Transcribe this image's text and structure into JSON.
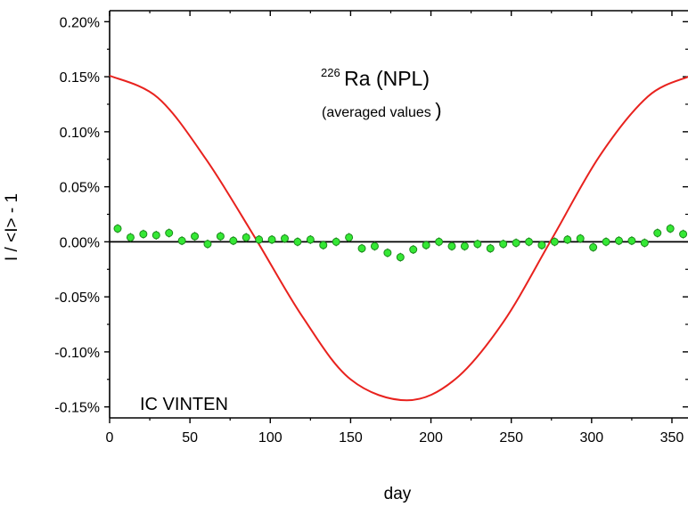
{
  "chart_data": {
    "type": "scatter",
    "xlabel": "day",
    "ylabel": "I / <I> - 1",
    "xlim": [
      0,
      360
    ],
    "ylim": [
      -0.0016,
      0.0021
    ],
    "x_ticks": [
      0,
      50,
      100,
      150,
      200,
      250,
      300,
      350
    ],
    "x_tick_labels": [
      "0",
      "50",
      "100",
      "150",
      "200",
      "250",
      "300",
      "350"
    ],
    "y_ticks": [
      -0.0015,
      -0.001,
      -0.0005,
      0,
      0.0005,
      0.001,
      0.0015,
      0.002
    ],
    "y_tick_labels": [
      "-0.15%",
      "-0.10%",
      "-0.05%",
      "0.00%",
      "0.05%",
      "0.10%",
      "0.15%",
      "0.20%"
    ],
    "grid": false,
    "annotations": {
      "title_sup": "226",
      "title_main": "Ra (NPL)",
      "subtitle": "(averaged values",
      "subtitle_close": ")",
      "detector": "IC VINTEN"
    },
    "colors": {
      "curve": "#e8221e",
      "points_fill": "#35e835",
      "points_stroke": "#1a8a1a",
      "detector_label": "#7a7a10",
      "zero_line": "#000000"
    },
    "curve": {
      "name": "",
      "x": [
        0,
        30,
        60,
        90,
        120,
        150,
        185,
        215,
        245,
        275,
        305,
        335,
        360
      ],
      "y": [
        0.00151,
        0.00131,
        0.00075,
        5e-05,
        -0.00068,
        -0.00125,
        -0.00144,
        -0.00125,
        -0.00073,
        2e-05,
        0.00078,
        0.00132,
        0.0015
      ]
    },
    "series": [
      {
        "name": "",
        "x": [
          5,
          13,
          21,
          29,
          37,
          45,
          53,
          61,
          69,
          77,
          85,
          93,
          101,
          109,
          117,
          125,
          133,
          141,
          149,
          157,
          165,
          173,
          181,
          189,
          197,
          205,
          213,
          221,
          229,
          237,
          245,
          253,
          261,
          269,
          277,
          285,
          293,
          301,
          309,
          317,
          325,
          333,
          341,
          349,
          357
        ],
        "y": [
          0.00012,
          4e-05,
          7e-05,
          6e-05,
          8e-05,
          1e-05,
          5e-05,
          -2e-05,
          5e-05,
          1e-05,
          4e-05,
          2e-05,
          2e-05,
          3e-05,
          0.0,
          2e-05,
          -3e-05,
          0.0,
          4e-05,
          -6e-05,
          -4e-05,
          -0.0001,
          -0.00014,
          -7e-05,
          -3e-05,
          0.0,
          -4e-05,
          -4e-05,
          -2e-05,
          -6e-05,
          -2e-05,
          -1e-05,
          0.0,
          -3e-05,
          0.0,
          2e-05,
          3e-05,
          -5e-05,
          0.0,
          1e-05,
          1e-05,
          -1e-05,
          8e-05,
          0.00012,
          7e-05
        ],
        "error": 4e-05
      }
    ]
  }
}
